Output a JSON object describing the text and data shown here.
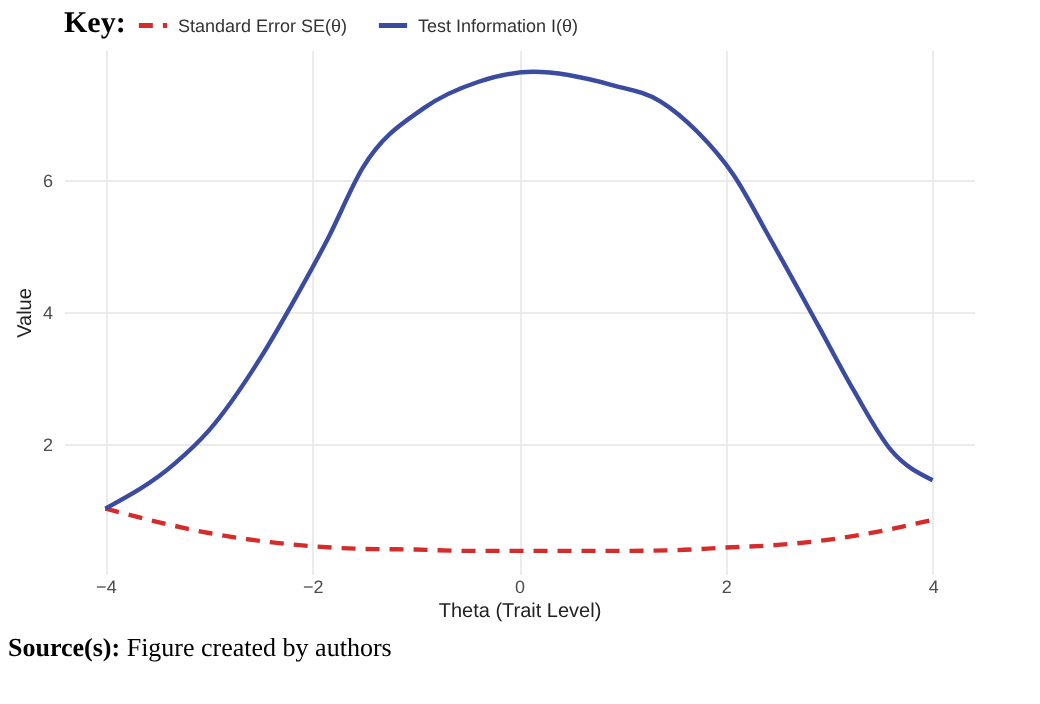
{
  "chart_data": {
    "type": "line",
    "xlabel": "Theta (Trait Level)",
    "ylabel": "Value",
    "legend_title": "Key:",
    "legend": "top",
    "grid": true,
    "xlim": [
      -4.4,
      4.4
    ],
    "xticks": [
      -4,
      -2,
      0,
      2,
      4
    ],
    "ylim": [
      0.03,
      7.96
    ],
    "yticks": [
      2,
      4,
      6
    ],
    "annotations": [
      "Source(s): Figure created by authors"
    ],
    "series": [
      {
        "name": "Standard Error SE(θ)",
        "color": "#d62b2b",
        "line_style": "dashed",
        "x": [
          -4,
          -3.5,
          -3,
          -2.5,
          -2,
          -1.5,
          -1,
          -0.5,
          0,
          0.5,
          1,
          1.5,
          2,
          2.5,
          3,
          3.5,
          4
        ],
        "values": [
          1.02,
          0.82,
          0.65,
          0.53,
          0.45,
          0.41,
          0.4,
          0.38,
          0.38,
          0.38,
          0.38,
          0.39,
          0.43,
          0.47,
          0.55,
          0.68,
          0.85
        ]
      },
      {
        "name": "Test Information I(θ)",
        "color": "#3a4ba0",
        "line_style": "solid",
        "x": [
          -4,
          -3.33,
          -3,
          -2.5,
          -2.2,
          -1.85,
          -1.51,
          -0.92,
          -0.39,
          0.14,
          0.9,
          1.37,
          1.72,
          2.07,
          2.43,
          2.89,
          3.24,
          3.6,
          4
        ],
        "values": [
          1.02,
          1.7,
          2.2,
          3.3,
          4.1,
          5.1,
          6.18,
          7.08,
          7.48,
          7.63,
          7.43,
          7.18,
          6.73,
          6.08,
          5.1,
          3.8,
          2.8,
          1.9,
          1.45
        ]
      }
    ]
  }
}
